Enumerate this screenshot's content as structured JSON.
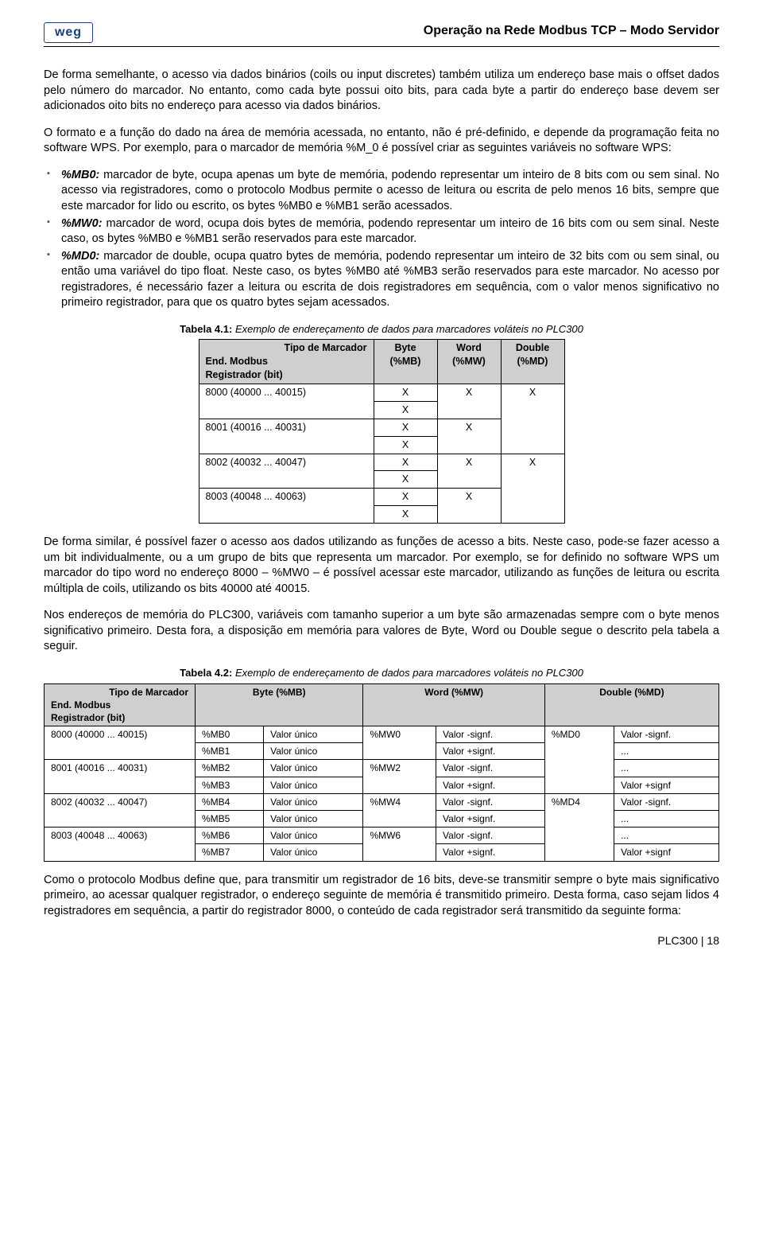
{
  "header": {
    "logo_text": "weg",
    "title": "Operação na Rede Modbus TCP – Modo Servidor"
  },
  "paragraphs": {
    "p1": "De forma semelhante, o acesso via dados binários (coils ou input discretes) também utiliza um endereço base mais o offset dados pelo número do marcador. No entanto, como cada byte possui oito bits, para cada byte a partir do endereço base devem ser adicionados oito bits no endereço para acesso via dados binários.",
    "p2": "O formato e a função do dado na área de memória acessada, no entanto, não é pré-definido, e depende da programação feita no software WPS. Por exemplo, para o marcador de memória %M_0 é possível criar as seguintes variáveis no software WPS:",
    "p3": "De forma similar, é possível fazer o acesso aos dados utilizando as funções de acesso a bits. Neste caso, pode-se fazer acesso a um bit individualmente, ou a um grupo de bits que representa um marcador. Por exemplo, se for definido no software WPS um marcador do tipo word no endereço 8000 – %MW0 – é possível acessar este marcador, utilizando as funções de leitura ou escrita múltipla de coils, utilizando os bits 40000 até 40015.",
    "p4": "Nos endereços de memória do PLC300, variáveis com tamanho superior a um byte são armazenadas sempre com o byte menos significativo primeiro. Desta fora, a disposição em memória para valores de Byte, Word ou Double segue o descrito pela tabela a seguir.",
    "p5": "Como o protocolo Modbus define que, para transmitir um registrador de 16 bits, deve-se transmitir sempre o byte mais significativo primeiro, ao acessar qualquer registrador, o endereço seguinte de memória é transmitido primeiro. Desta forma, caso sejam lidos 4 registradores em sequência, a partir do registrador 8000, o conteúdo de cada registrador será transmitido da seguinte forma:"
  },
  "bullets": {
    "b1_lead": "%MB0:",
    "b1_text": " marcador de byte, ocupa apenas um byte de memória, podendo representar um inteiro de 8 bits com ou sem sinal. No acesso via registradores, como o protocolo Modbus permite o acesso de leitura ou escrita de pelo menos 16 bits, sempre que este marcador for lido ou escrito, os bytes %MB0 e %MB1 serão acessados.",
    "b2_lead": "%MW0:",
    "b2_text": " marcador de word, ocupa dois bytes de memória, podendo representar um inteiro de 16 bits com ou sem sinal. Neste caso, os bytes %MB0 e %MB1 serão reservados para este marcador.",
    "b3_lead": "%MD0:",
    "b3_text": " marcador de double, ocupa quatro bytes de memória, podendo representar um inteiro de 32 bits com ou sem sinal, ou então uma variável do tipo float. Neste caso, os bytes %MB0 até %MB3 serão reservados para este marcador. No acesso por registradores, é necessário fazer a leitura ou escrita de dois registradores em sequência, com o valor menos significativo no primeiro registrador, para que os quatro bytes sejam acessados."
  },
  "table1": {
    "caption_bold": "Tabela 4.1:",
    "caption_rest": " Exemplo de endereçamento de dados para marcadores voláteis no PLC300",
    "h_addr_line1": "Tipo de Marcador",
    "h_addr_line2": "End. Modbus",
    "h_addr_line3": "Registrador (bit)",
    "h_byte": "Byte (%MB)",
    "h_word": "Word (%MW)",
    "h_double": "Double (%MD)",
    "rows": [
      {
        "addr": "8000 (40000 ... 40015)",
        "b": "X",
        "w": "X",
        "d": "X"
      },
      {
        "addr": "",
        "b": "X",
        "w": "",
        "d": ""
      },
      {
        "addr": "8001 (40016 ... 40031)",
        "b": "X",
        "w": "X",
        "d": ""
      },
      {
        "addr": "",
        "b": "X",
        "w": "",
        "d": ""
      },
      {
        "addr": "8002 (40032 ... 40047)",
        "b": "X",
        "w": "X",
        "d": "X"
      },
      {
        "addr": "",
        "b": "X",
        "w": "",
        "d": ""
      },
      {
        "addr": "8003 (40048 ... 40063)",
        "b": "X",
        "w": "X",
        "d": ""
      },
      {
        "addr": "",
        "b": "X",
        "w": "",
        "d": ""
      }
    ]
  },
  "table2": {
    "caption_bold": "Tabela 4.2:",
    "caption_rest": " Exemplo de endereçamento de dados para marcadores voláteis no PLC300",
    "h_addr_line1": "Tipo de Marcador",
    "h_addr_line2": "End. Modbus",
    "h_addr_line3": "Registrador (bit)",
    "h_byte": "Byte (%MB)",
    "h_word": "Word (%MW)",
    "h_double": "Double (%MD)",
    "rows": [
      {
        "addr": "8000 (40000 ... 40015)",
        "mb": "%MB0",
        "bv": "Valor único",
        "mw": "%MW0",
        "wv": "Valor -signf.",
        "md": "%MD0",
        "dv": "Valor -signf."
      },
      {
        "addr": "",
        "mb": "%MB1",
        "bv": "Valor único",
        "mw": "",
        "wv": "Valor +signf.",
        "md": "",
        "dv": "..."
      },
      {
        "addr": "8001 (40016 ... 40031)",
        "mb": "%MB2",
        "bv": "Valor único",
        "mw": "%MW2",
        "wv": "Valor -signf.",
        "md": "",
        "dv": "..."
      },
      {
        "addr": "",
        "mb": "%MB3",
        "bv": "Valor único",
        "mw": "",
        "wv": "Valor +signf.",
        "md": "",
        "dv": "Valor +signf"
      },
      {
        "addr": "8002 (40032 ... 40047)",
        "mb": "%MB4",
        "bv": "Valor único",
        "mw": "%MW4",
        "wv": "Valor -signf.",
        "md": "%MD4",
        "dv": "Valor -signf."
      },
      {
        "addr": "",
        "mb": "%MB5",
        "bv": "Valor único",
        "mw": "",
        "wv": "Valor +signf.",
        "md": "",
        "dv": "..."
      },
      {
        "addr": "8003 (40048 ... 40063)",
        "mb": "%MB6",
        "bv": "Valor único",
        "mw": "%MW6",
        "wv": "Valor -signf.",
        "md": "",
        "dv": "..."
      },
      {
        "addr": "",
        "mb": "%MB7",
        "bv": "Valor único",
        "mw": "",
        "wv": "Valor +signf.",
        "md": "",
        "dv": "Valor +signf"
      }
    ]
  },
  "footer": {
    "text": "PLC300 | 18"
  }
}
